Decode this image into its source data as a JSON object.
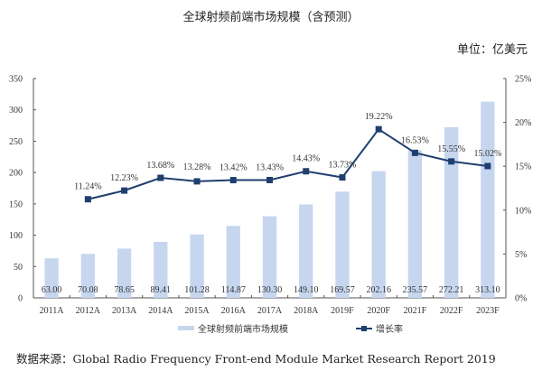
{
  "chart_data": {
    "type": "bar",
    "title": "全球射频前端市场规模（含预测）",
    "unit_label": "单位：亿美元",
    "categories": [
      "2011A",
      "2012A",
      "2013A",
      "2014A",
      "2015A",
      "2016A",
      "2017A",
      "2018A",
      "2019F",
      "2020F",
      "2021F",
      "2022F",
      "2023F"
    ],
    "series": [
      {
        "name": "全球射频前端市场规模",
        "type": "bar",
        "axis": "left",
        "color": "#c6d6ef",
        "values": [
          63.0,
          70.08,
          78.65,
          89.41,
          101.28,
          114.87,
          130.3,
          149.1,
          169.57,
          202.16,
          235.57,
          272.21,
          313.1
        ],
        "labels": [
          "63.00",
          "70.08",
          "78.65",
          "89.41",
          "101.28",
          "114.87",
          "130.30",
          "149.10",
          "169.57",
          "202.16",
          "235.57",
          "272.21",
          "313.10"
        ]
      },
      {
        "name": "增长率",
        "type": "line",
        "axis": "right",
        "color": "#1f3f6e",
        "marker": "square",
        "values": [
          null,
          11.24,
          12.23,
          13.68,
          13.28,
          13.42,
          13.43,
          14.43,
          13.73,
          19.22,
          16.53,
          15.55,
          15.02
        ],
        "labels": [
          null,
          "11.24%",
          "12.23%",
          "13.68%",
          "13.28%",
          "13.42%",
          "13.43%",
          "14.43%",
          "13.73%",
          "19.22%",
          "16.53%",
          "15.55%",
          "15.02%"
        ]
      }
    ],
    "left_axis": {
      "ylim": [
        0,
        350
      ],
      "ticks": [
        "0",
        "50",
        "100",
        "150",
        "200",
        "250",
        "300",
        "350"
      ]
    },
    "right_axis": {
      "ylim": [
        0,
        25
      ],
      "ticks": [
        "0%",
        "5%",
        "10%",
        "15%",
        "20%",
        "25%"
      ]
    },
    "grid": false,
    "legend_position": "bottom",
    "source": "数据来源：Global Radio Frequency Front-end Module Market Research Report 2019"
  }
}
